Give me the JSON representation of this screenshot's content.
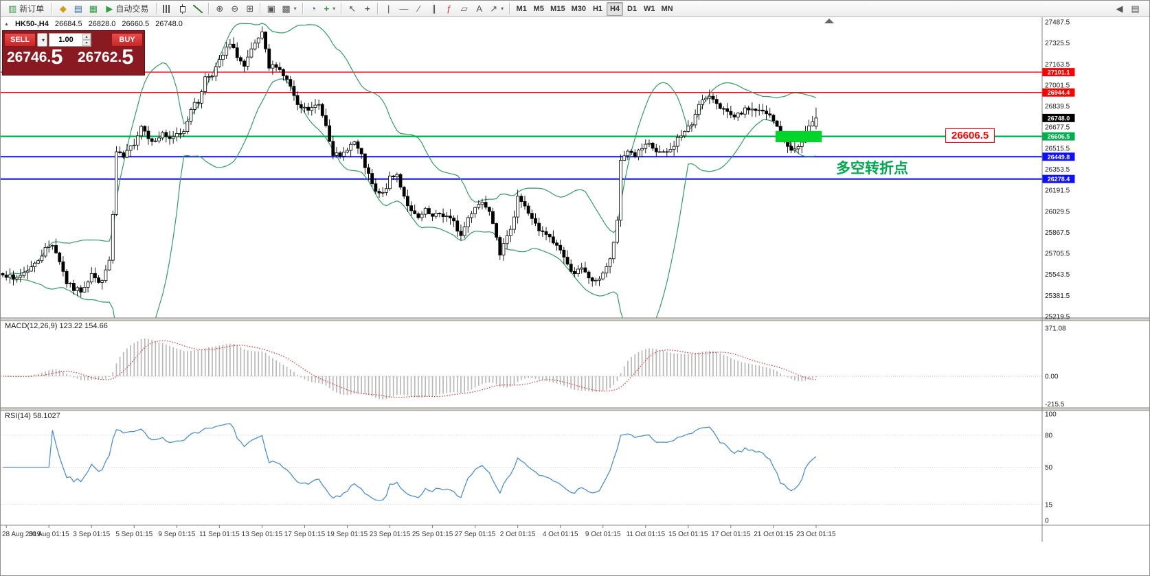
{
  "toolbar": {
    "new_order_label": "新订单",
    "auto_trading_label": "自动交易",
    "timeframes": [
      "M1",
      "M5",
      "M15",
      "M30",
      "H1",
      "H4",
      "D1",
      "W1",
      "MN"
    ],
    "active_timeframe": "H4"
  },
  "symbol_bar": {
    "symbol": "HK50-,H4",
    "open": "26684.5",
    "high": "26828.0",
    "low": "26660.5",
    "close": "26748.0"
  },
  "trade_panel": {
    "sell_label": "SELL",
    "buy_label": "BUY",
    "volume": "1.00",
    "sell_price": "26746.",
    "sell_price_big": "5",
    "buy_price": "26762.",
    "buy_price_big": "5"
  },
  "annotations": {
    "price_callout": "26606.5",
    "note": "多空转折点"
  },
  "indicator_labels": {
    "macd": "MACD(12,26,9) 123.22 154.66",
    "rsi": "RSI(14) 58.1027"
  },
  "chart_data": {
    "type": "candlestick",
    "symbol": "HK50-",
    "timeframe": "H4",
    "bars": 230,
    "last_candle_ohlc": [
      26684.5,
      26828.0,
      26660.5,
      26748.0
    ],
    "current_price": "26748.0",
    "price_axis_ticks": [
      27487.5,
      27325.5,
      27163.5,
      27001.5,
      26839.5,
      26677.5,
      26515.5,
      26353.5,
      26191.5,
      26029.5,
      25867.5,
      25705.5,
      25543.5,
      25381.5,
      25219.5
    ],
    "hlines": [
      {
        "price": 27101.1,
        "label": "27101.1",
        "color": "#ff0000",
        "width": 1.4
      },
      {
        "price": 26944.4,
        "label": "26944.4",
        "color": "#ff0000",
        "width": 1.4
      },
      {
        "price": 26606.5,
        "label": "26606.5",
        "color": "#00b050",
        "width": 2.4
      },
      {
        "price": 26449.8,
        "label": "26449.8",
        "color": "#0f0fff",
        "width": 2
      },
      {
        "price": 26278.4,
        "label": "26278.4",
        "color": "#0f0fff",
        "width": 2
      }
    ],
    "bollinger": {
      "period": 20,
      "deviation": 2,
      "color": "#2e9e62"
    },
    "macd": {
      "params": "12,26,9",
      "axis_ticks": [
        "371.08",
        "0.00",
        "-215.5"
      ],
      "histogram_color": "#b8b8b8",
      "signal_color": "#dd3333"
    },
    "rsi": {
      "period": 14,
      "axis_ticks": [
        "100",
        "80",
        "50",
        "15",
        "0"
      ],
      "levels": [
        80,
        50,
        15
      ],
      "line_color": "#4a8fd4"
    },
    "time_labels": [
      "28 Aug 2019",
      "30 Aug 01:15",
      "3 Sep 01:15",
      "5 Sep 01:15",
      "9 Sep 01:15",
      "11 Sep 01:15",
      "13 Sep 01:15",
      "17 Sep 01:15",
      "19 Sep 01:15",
      "23 Sep 01:15",
      "25 Sep 01:15",
      "27 Sep 01:15",
      "2 Oct 01:15",
      "4 Oct 01:15",
      "9 Oct 01:15",
      "11 Oct 01:15",
      "15 Oct 01:15",
      "17 Oct 01:15",
      "21 Oct 01:15",
      "23 Oct 01:15"
    ],
    "first_label_bar": 1,
    "label_every_bars": 12,
    "noise_seed": 7,
    "noise_amp": 22,
    "highlight_rect": {
      "bar_start": 218,
      "bar_end": 231,
      "price_top": 26648,
      "price_bottom": 26562,
      "color": "#00d52a"
    },
    "price_path_anchors": [
      [
        0,
        25560
      ],
      [
        3,
        25500
      ],
      [
        6,
        25560
      ],
      [
        9,
        25620
      ],
      [
        12,
        25740
      ],
      [
        14,
        25780
      ],
      [
        16,
        25650
      ],
      [
        18,
        25480
      ],
      [
        20,
        25430
      ],
      [
        22,
        25420
      ],
      [
        24,
        25500
      ],
      [
        25,
        25560
      ],
      [
        27,
        25470
      ],
      [
        29,
        25560
      ],
      [
        30,
        25650
      ],
      [
        31,
        26000
      ],
      [
        32,
        26480
      ],
      [
        34,
        26440
      ],
      [
        37,
        26560
      ],
      [
        39,
        26690
      ],
      [
        41,
        26610
      ],
      [
        43,
        26560
      ],
      [
        45,
        26640
      ],
      [
        47,
        26570
      ],
      [
        49,
        26620
      ],
      [
        51,
        26650
      ],
      [
        53,
        26830
      ],
      [
        55,
        26870
      ],
      [
        57,
        27060
      ],
      [
        59,
        27090
      ],
      [
        61,
        27180
      ],
      [
        63,
        27280
      ],
      [
        64,
        27310
      ],
      [
        66,
        27230
      ],
      [
        68,
        27140
      ],
      [
        70,
        27260
      ],
      [
        72,
        27360
      ],
      [
        73,
        27390
      ],
      [
        75,
        27130
      ],
      [
        77,
        27160
      ],
      [
        79,
        27080
      ],
      [
        81,
        26990
      ],
      [
        83,
        26830
      ],
      [
        86,
        26810
      ],
      [
        89,
        26850
      ],
      [
        91,
        26700
      ],
      [
        93,
        26480
      ],
      [
        95,
        26440
      ],
      [
        97,
        26520
      ],
      [
        99,
        26560
      ],
      [
        101,
        26450
      ],
      [
        103,
        26300
      ],
      [
        105,
        26170
      ],
      [
        107,
        26160
      ],
      [
        109,
        26280
      ],
      [
        111,
        26310
      ],
      [
        113,
        26150
      ],
      [
        115,
        26020
      ],
      [
        117,
        25970
      ],
      [
        119,
        26030
      ],
      [
        121,
        25980
      ],
      [
        123,
        26010
      ],
      [
        125,
        25990
      ],
      [
        127,
        25940
      ],
      [
        129,
        25840
      ],
      [
        131,
        25980
      ],
      [
        133,
        26070
      ],
      [
        135,
        26100
      ],
      [
        137,
        26050
      ],
      [
        139,
        25850
      ],
      [
        140,
        25710
      ],
      [
        142,
        25820
      ],
      [
        144,
        26000
      ],
      [
        145,
        26150
      ],
      [
        147,
        26060
      ],
      [
        149,
        25980
      ],
      [
        151,
        25870
      ],
      [
        153,
        25850
      ],
      [
        155,
        25790
      ],
      [
        157,
        25740
      ],
      [
        159,
        25610
      ],
      [
        161,
        25560
      ],
      [
        163,
        25580
      ],
      [
        165,
        25520
      ],
      [
        167,
        25480
      ],
      [
        169,
        25560
      ],
      [
        171,
        25650
      ],
      [
        173,
        25940
      ],
      [
        174,
        26420
      ],
      [
        176,
        26500
      ],
      [
        178,
        26460
      ],
      [
        180,
        26510
      ],
      [
        182,
        26540
      ],
      [
        184,
        26490
      ],
      [
        186,
        26470
      ],
      [
        188,
        26500
      ],
      [
        190,
        26590
      ],
      [
        192,
        26640
      ],
      [
        194,
        26700
      ],
      [
        196,
        26870
      ],
      [
        198,
        26890
      ],
      [
        200,
        26900
      ],
      [
        202,
        26840
      ],
      [
        204,
        26780
      ],
      [
        206,
        26740
      ],
      [
        208,
        26790
      ],
      [
        210,
        26820
      ],
      [
        212,
        26810
      ],
      [
        214,
        26790
      ],
      [
        216,
        26760
      ],
      [
        218,
        26680
      ],
      [
        219,
        26600
      ],
      [
        221,
        26530
      ],
      [
        223,
        26500
      ],
      [
        225,
        26560
      ],
      [
        226,
        26640
      ],
      [
        228,
        26700
      ],
      [
        229,
        26748
      ]
    ]
  }
}
